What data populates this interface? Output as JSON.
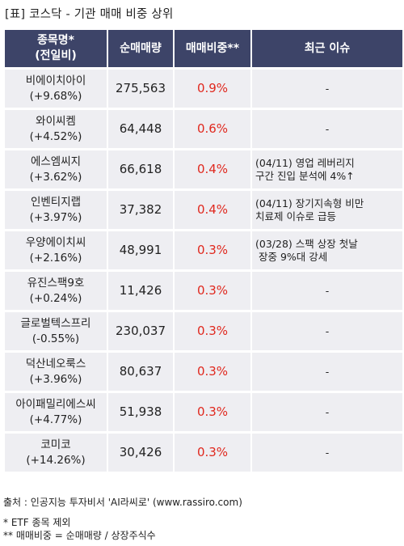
{
  "title": "[표] 코스닥 - 기관 매매 비중 상위",
  "headers": {
    "name_line1": "종목명*",
    "name_line2": "(전일비)",
    "volume": "순매매량",
    "ratio": "매매비중**",
    "issue": "최근 이슈"
  },
  "rows": [
    {
      "name": "비에이치아이",
      "change": "(+9.68%)",
      "volume": "275,563",
      "ratio": "0.9%",
      "issue": [
        "-"
      ]
    },
    {
      "name": "와이씨켐",
      "change": "(+4.52%)",
      "volume": "64,448",
      "ratio": "0.6%",
      "issue": [
        "-"
      ]
    },
    {
      "name": "에스엠씨지",
      "change": "(+3.62%)",
      "volume": "66,618",
      "ratio": "0.4%",
      "issue": [
        "(04/11) 영업 레버리지",
        "구간 진입 분석에 4%↑"
      ]
    },
    {
      "name": "인벤티지랩",
      "change": "(+3.97%)",
      "volume": "37,382",
      "ratio": "0.4%",
      "issue": [
        "(04/11) 장기지속형 비만",
        "치료제 이슈로 급등"
      ]
    },
    {
      "name": "우양에이치씨",
      "change": "(+2.16%)",
      "volume": "48,991",
      "ratio": "0.3%",
      "issue": [
        "(03/28) 스팩 상장 첫날",
        " 장중 9%대 강세"
      ]
    },
    {
      "name": "유진스팩9호",
      "change": "(+0.24%)",
      "volume": "11,426",
      "ratio": "0.3%",
      "issue": [
        "-"
      ]
    },
    {
      "name": "글로벌텍스프리",
      "change": "(-0.55%)",
      "volume": "230,037",
      "ratio": "0.3%",
      "issue": [
        "-"
      ]
    },
    {
      "name": "덕산네오룩스",
      "change": "(+3.96%)",
      "volume": "80,637",
      "ratio": "0.3%",
      "issue": [
        "-"
      ]
    },
    {
      "name": "아이패밀리에스씨",
      "change": "(+4.77%)",
      "volume": "51,938",
      "ratio": "0.3%",
      "issue": [
        "-"
      ]
    },
    {
      "name": "코미코",
      "change": "(+14.26%)",
      "volume": "30,426",
      "ratio": "0.3%",
      "issue": [
        "-"
      ]
    }
  ],
  "footer": {
    "source": "출처 : 인공지능 투자비서 'AI라씨로' (www.rassiro.com)",
    "note1": "* ETF 종목 제외",
    "note2": "** 매매비중 = 순매매량 / 상장주식수"
  }
}
